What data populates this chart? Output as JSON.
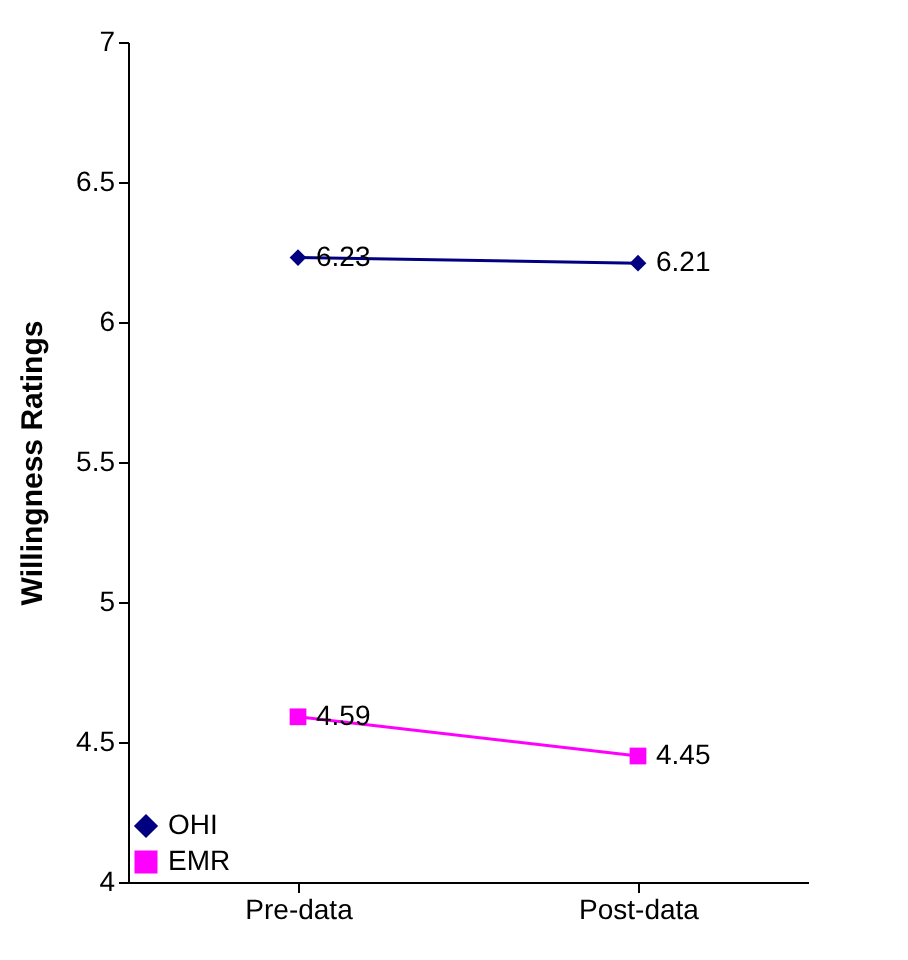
{
  "chart_data": {
    "type": "line",
    "ylabel": "Willingness Ratings",
    "categories": [
      "Pre-data",
      "Post-data"
    ],
    "series": [
      {
        "name": "OHI",
        "color": "#000080",
        "marker": "diamond",
        "values": [
          6.23,
          6.21
        ]
      },
      {
        "name": "EMR",
        "color": "#ff00ff",
        "marker": "square",
        "values": [
          4.59,
          4.45
        ]
      }
    ],
    "ylim": [
      4,
      7
    ],
    "yticks": [
      4,
      4.5,
      5,
      5.5,
      6,
      6.5,
      7
    ],
    "grid": false,
    "legend": "bottom left",
    "data_labels": true
  }
}
